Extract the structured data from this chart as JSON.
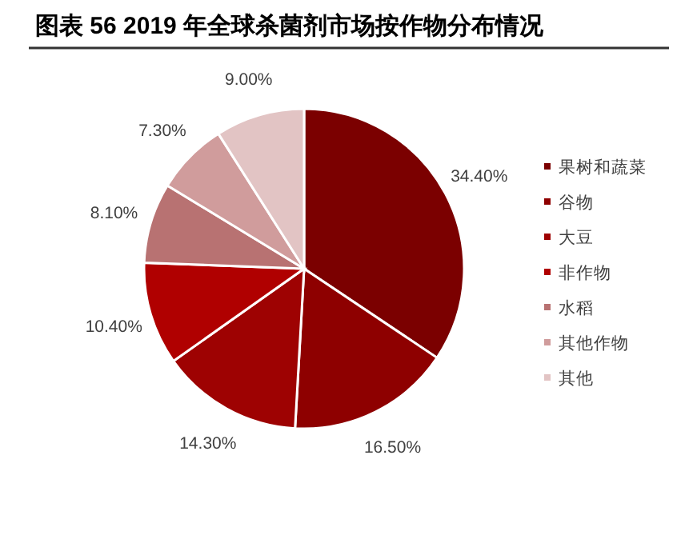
{
  "chart_data": {
    "type": "pie",
    "title": "图表 56 2019 年全球杀菌剂市场按作物分布情况",
    "categories": [
      "果树和蔬菜",
      "谷物",
      "大豆",
      "非作物",
      "水稻",
      "其他作物",
      "其他"
    ],
    "values": [
      34.4,
      16.5,
      14.3,
      10.4,
      8.1,
      7.3,
      9.0
    ],
    "value_labels": [
      "34.40%",
      "16.50%",
      "14.30%",
      "10.40%",
      "8.10%",
      "7.30%",
      "9.00%"
    ],
    "colors": [
      "#7b0000",
      "#8e0000",
      "#9e0202",
      "#b00000",
      "#b87272",
      "#d09c9c",
      "#e2c4c4"
    ],
    "legend": "right"
  }
}
